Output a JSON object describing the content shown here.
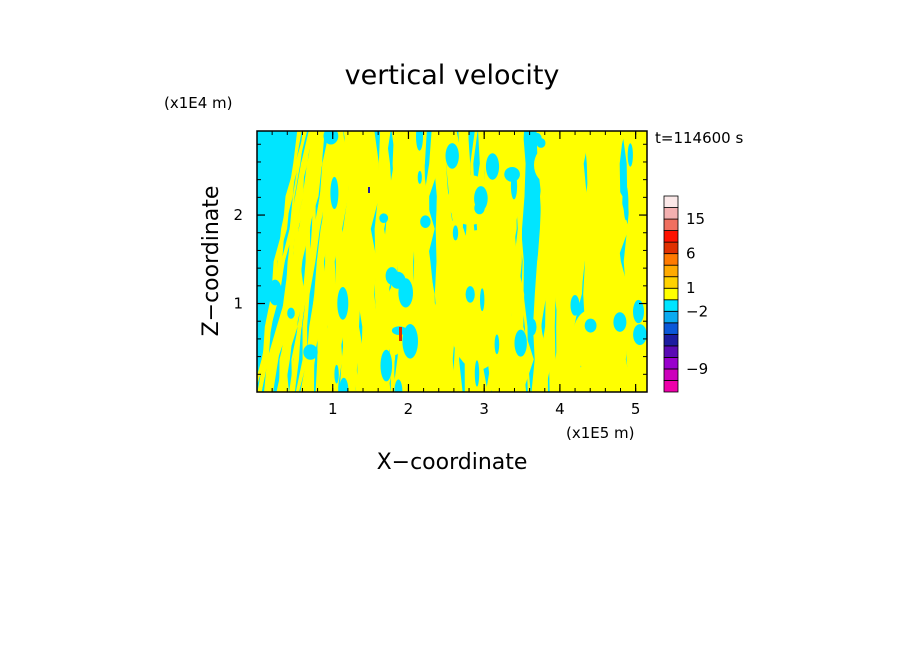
{
  "chart_data": {
    "type": "heatmap",
    "title": "vertical velocity",
    "xlabel": "X−coordinate",
    "ylabel": "Z−coordinate",
    "x_unit": "(x1E5 m)",
    "y_unit": "(x1E4 m)",
    "time_label": "t=114600 s",
    "xlim": [
      0,
      5.15
    ],
    "ylim": [
      0,
      2.95
    ],
    "x_ticks": [
      "1",
      "2",
      "3",
      "4",
      "5"
    ],
    "y_ticks": [
      "1",
      "2"
    ],
    "colorbar": {
      "levels": [
        {
          "color": "#ee00aa"
        },
        {
          "color": "#cc00bb"
        },
        {
          "color": "#9900cc"
        },
        {
          "color": "#5a0ab4"
        },
        {
          "color": "#1c1ca0"
        },
        {
          "color": "#0a58d8"
        },
        {
          "color": "#0aaaf0"
        },
        {
          "color": "#00e5ff"
        },
        {
          "color": "#ffff00"
        },
        {
          "color": "#ffd200"
        },
        {
          "color": "#ffaa00"
        },
        {
          "color": "#ff7a00"
        },
        {
          "color": "#e03000"
        },
        {
          "color": "#ff1200"
        },
        {
          "color": "#f07060"
        },
        {
          "color": "#f4b0b0"
        },
        {
          "color": "#fbe8e8"
        }
      ],
      "tick_labels": [
        "15",
        "6",
        "1",
        "−2",
        "−9"
      ]
    },
    "field_colors": {
      "positive": "#ffff00",
      "negative": "#00e5ff"
    }
  }
}
